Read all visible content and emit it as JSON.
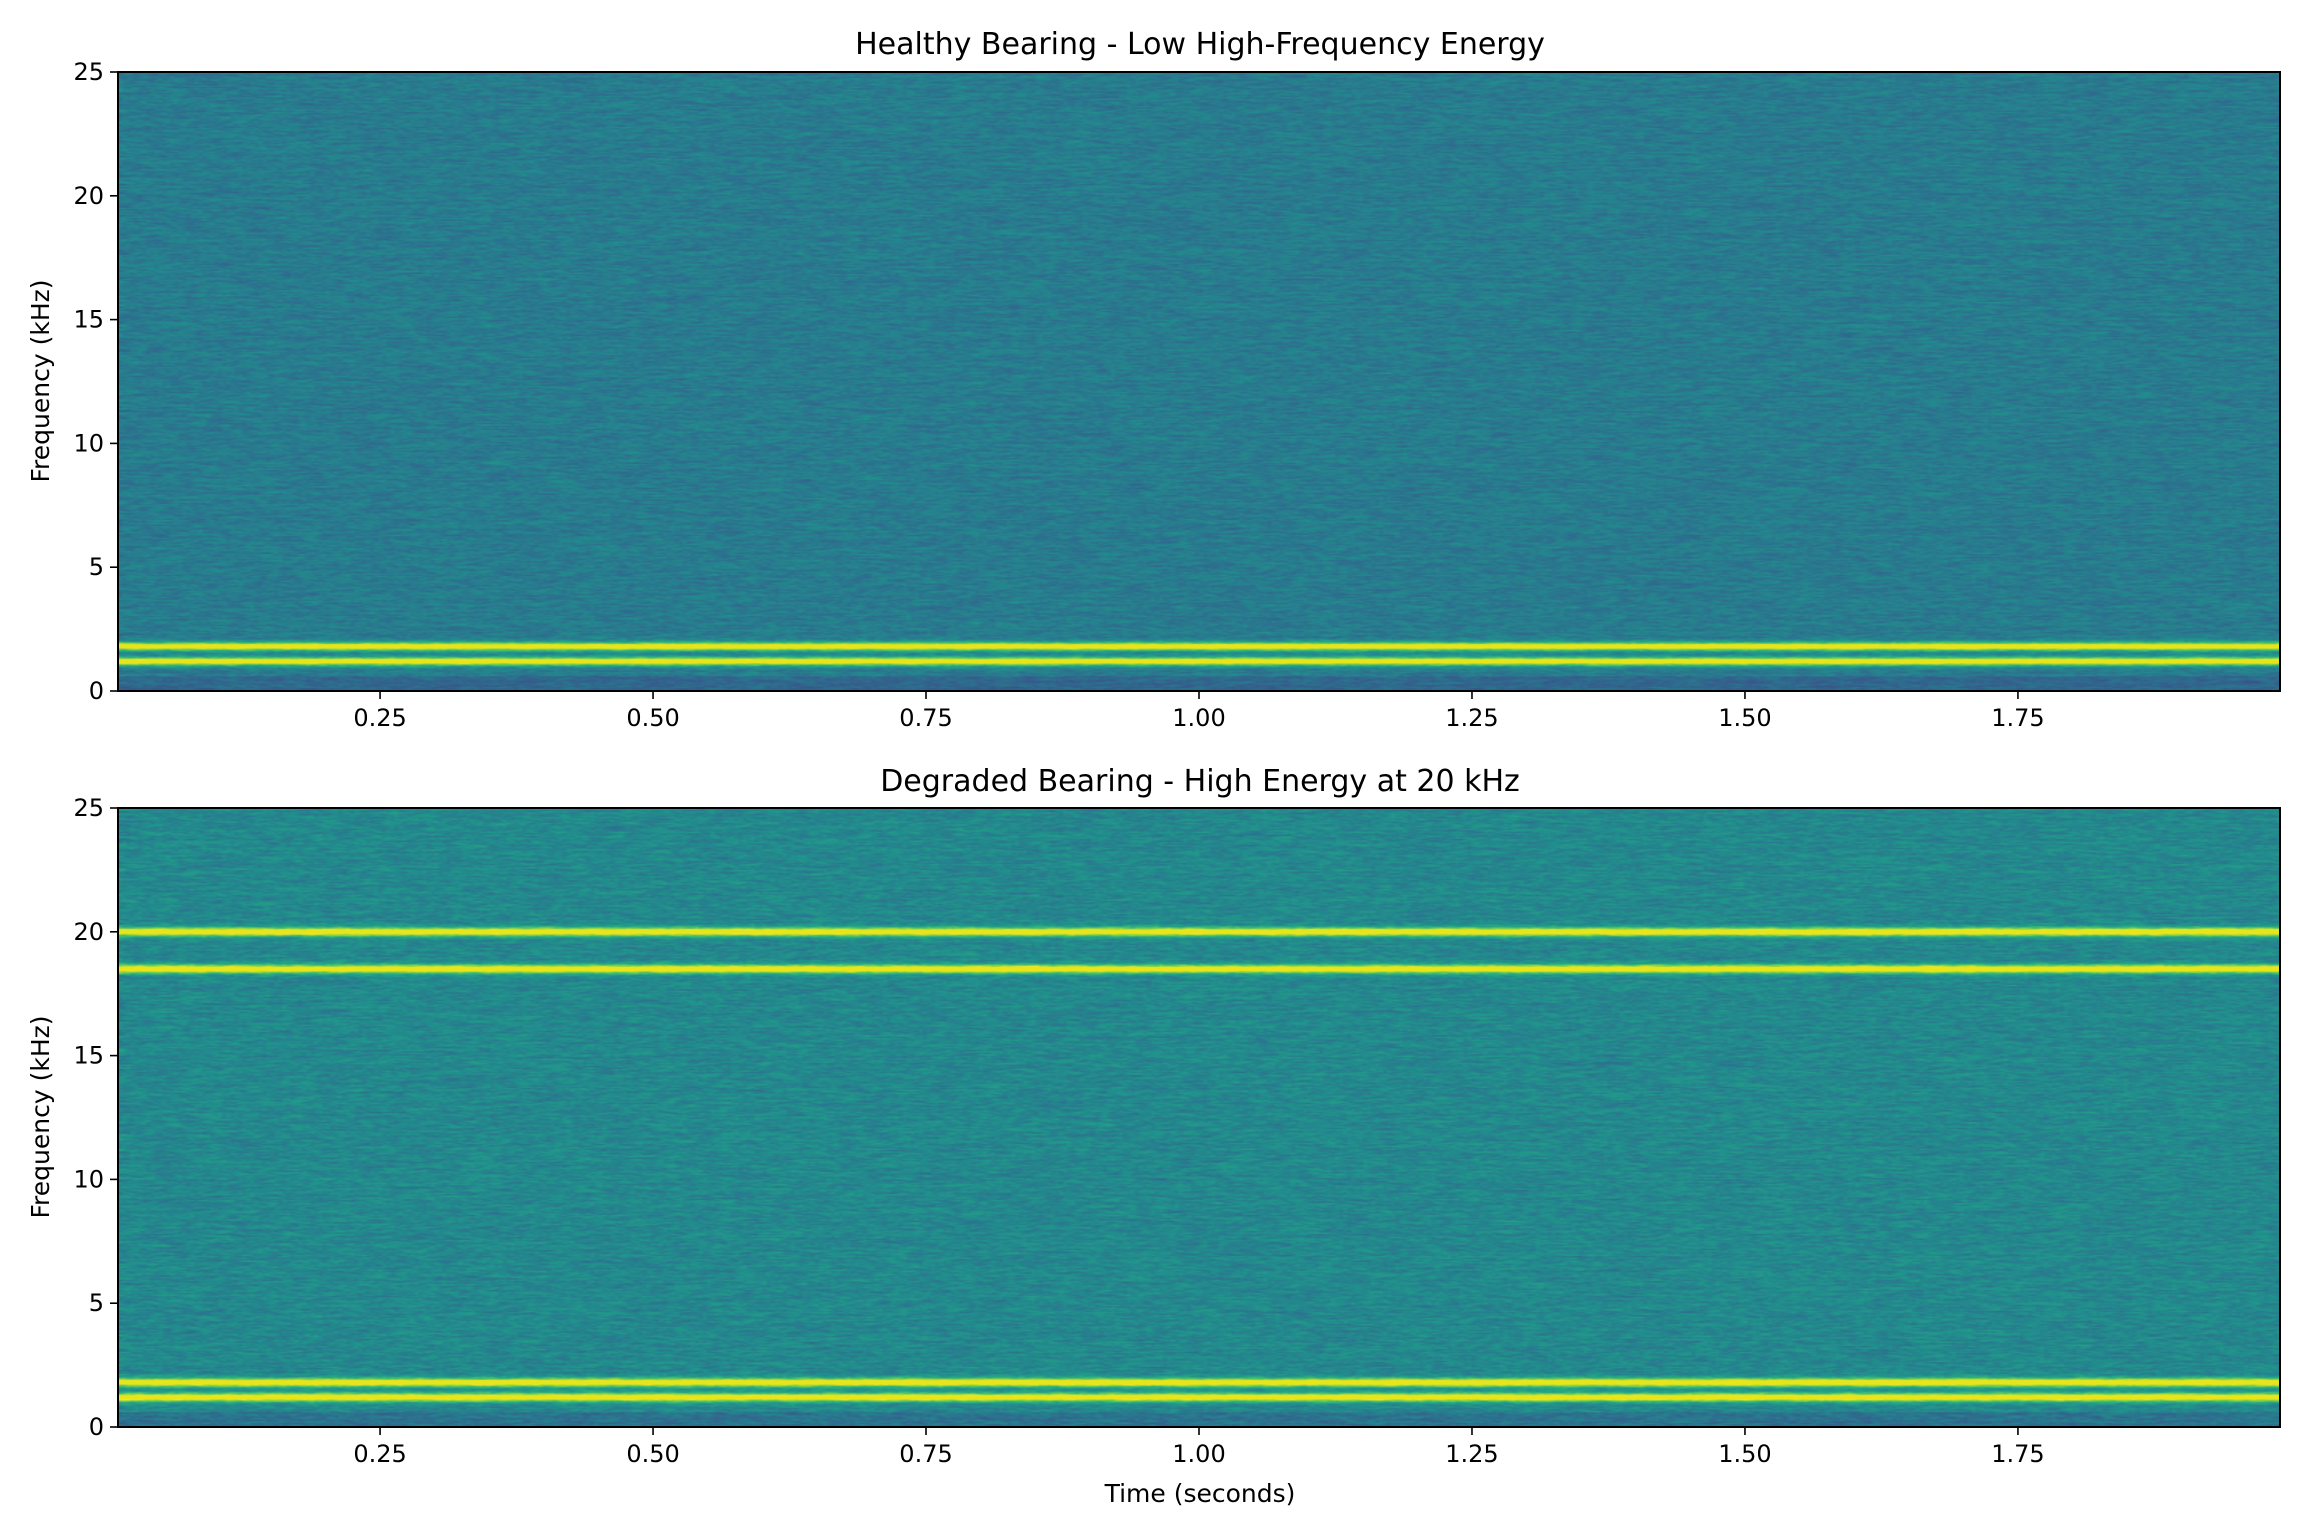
{
  "chart_data": [
    {
      "type": "heatmap",
      "subtype": "spectrogram",
      "title": "Healthy Bearing - Low High-Frequency Energy",
      "xlabel": "",
      "ylabel": "Frequency (kHz)",
      "xlim": [
        0.01,
        1.99
      ],
      "ylim": [
        0,
        25
      ],
      "xticks": [
        "0.25",
        "0.50",
        "0.75",
        "1.00",
        "1.25",
        "1.50",
        "1.75"
      ],
      "xtick_values": [
        0.25,
        0.5,
        0.75,
        1.0,
        1.25,
        1.5,
        1.75
      ],
      "yticks": [
        "0",
        "5",
        "10",
        "15",
        "20",
        "25"
      ],
      "ytick_values": [
        0,
        5,
        10,
        15,
        20,
        25
      ],
      "colormap": "viridis",
      "background_level": 0.42,
      "noise_level": 0.1,
      "tonal_lines_khz": [
        1.2,
        1.8
      ],
      "tonal_line_color": "#e5e419",
      "grid": false
    },
    {
      "type": "heatmap",
      "subtype": "spectrogram",
      "title": "Degraded Bearing - High Energy at 20 kHz",
      "xlabel": "Time (seconds)",
      "ylabel": "Frequency (kHz)",
      "xlim": [
        0.01,
        1.99
      ],
      "ylim": [
        0,
        25
      ],
      "xticks": [
        "0.25",
        "0.50",
        "0.75",
        "1.00",
        "1.25",
        "1.50",
        "1.75"
      ],
      "xtick_values": [
        0.25,
        0.5,
        0.75,
        1.0,
        1.25,
        1.5,
        1.75
      ],
      "yticks": [
        "0",
        "5",
        "10",
        "15",
        "20",
        "25"
      ],
      "ytick_values": [
        0,
        5,
        10,
        15,
        20,
        25
      ],
      "colormap": "viridis",
      "background_level": 0.47,
      "noise_level": 0.11,
      "tonal_lines_khz": [
        1.2,
        1.8,
        18.5,
        20.0
      ],
      "tonal_line_color": "#e5e419",
      "grid": false
    }
  ]
}
